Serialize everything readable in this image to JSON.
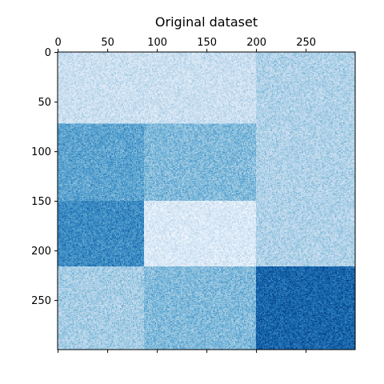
{
  "chart_data": {
    "type": "heatmap",
    "title": "Original dataset",
    "colormap": "Blues",
    "n_rows": 300,
    "n_cols": 300,
    "x_ticks": [
      0,
      50,
      100,
      150,
      200,
      250
    ],
    "y_ticks": [
      0,
      50,
      100,
      150,
      200,
      250
    ],
    "x_tick_labels": [
      "0",
      "50",
      "100",
      "150",
      "200",
      "250"
    ],
    "y_tick_labels": [
      "0",
      "50",
      "100",
      "150",
      "200",
      "250"
    ],
    "x_axis_position": "top",
    "row_breaks": [
      0,
      72,
      150,
      216,
      300
    ],
    "col_breaks": [
      0,
      87,
      200,
      300
    ],
    "block_intensity": [
      [
        0.22,
        0.22,
        0.32
      ],
      [
        0.55,
        0.45,
        0.32
      ],
      [
        0.65,
        0.15,
        0.32
      ],
      [
        0.35,
        0.45,
        0.8
      ]
    ],
    "noise_amplitude": 0.18
  }
}
